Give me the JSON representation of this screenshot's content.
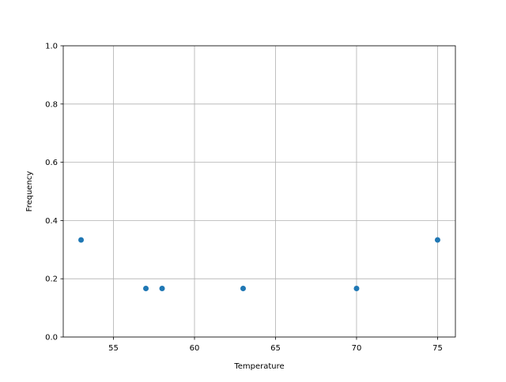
{
  "chart_data": {
    "type": "scatter",
    "title": "",
    "xlabel": "Temperature",
    "ylabel": "Frequency",
    "xlim": [
      51.9,
      76.1
    ],
    "ylim": [
      0,
      1
    ],
    "xticks": [
      55,
      60,
      65,
      70,
      75
    ],
    "xtick_labels": [
      "55",
      "60",
      "65",
      "70",
      "75"
    ],
    "yticks": [
      0,
      0.2,
      0.4,
      0.6,
      0.8,
      1.0
    ],
    "ytick_labels": [
      "0.0",
      "0.2",
      "0.4",
      "0.6",
      "0.8",
      "1.0"
    ],
    "grid": true,
    "color": "#1f77b4",
    "x": [
      53,
      57,
      58,
      63,
      70,
      75
    ],
    "y": [
      0.3333,
      0.1667,
      0.1667,
      0.1667,
      0.1667,
      0.3333
    ]
  }
}
